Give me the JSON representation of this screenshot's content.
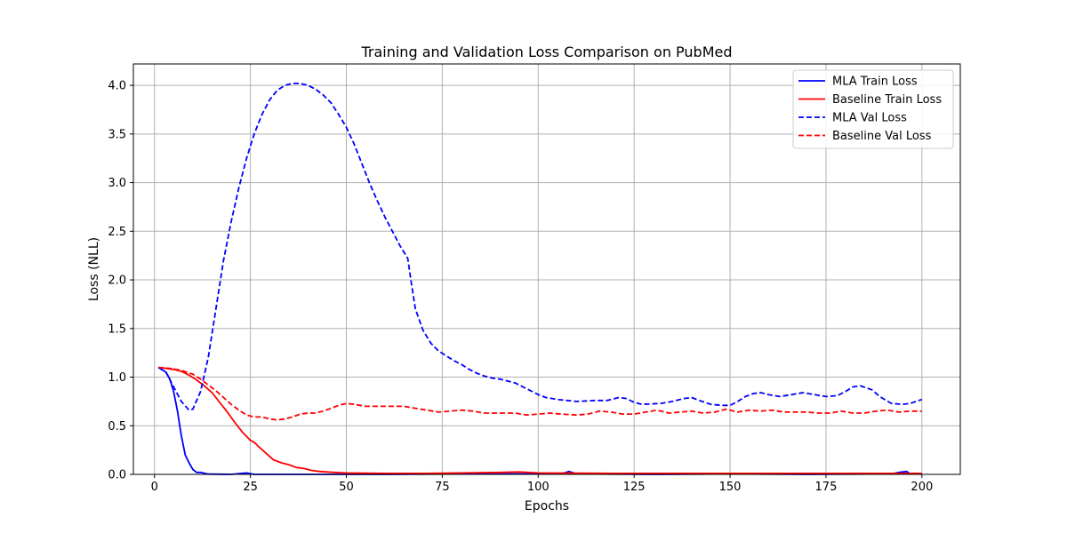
{
  "chart_data": {
    "type": "line",
    "title": "Training and Validation Loss Comparison on PubMed",
    "xlabel": "Epochs",
    "ylabel": "Loss (NLL)",
    "xlim": [
      -5.5,
      210
    ],
    "ylim": [
      0,
      4.22
    ],
    "xticks": [
      0,
      25,
      50,
      75,
      100,
      125,
      150,
      175,
      200
    ],
    "yticks": [
      0.0,
      0.5,
      1.0,
      1.5,
      2.0,
      2.5,
      3.0,
      3.5,
      4.0
    ],
    "ytick_labels": [
      "0.0",
      "0.5",
      "1.0",
      "1.5",
      "2.0",
      "2.5",
      "3.0",
      "3.5",
      "4.0"
    ],
    "grid": true,
    "legend_position": "top-right",
    "series": [
      {
        "name": "MLA Train Loss",
        "color": "#0000ff",
        "style": "solid",
        "points": [
          [
            1,
            1.1
          ],
          [
            3,
            1.05
          ],
          [
            4,
            0.98
          ],
          [
            5,
            0.85
          ],
          [
            6,
            0.65
          ],
          [
            7,
            0.4
          ],
          [
            8,
            0.2
          ],
          [
            9,
            0.12
          ],
          [
            10,
            0.05
          ],
          [
            11,
            0.02
          ],
          [
            12,
            0.02
          ],
          [
            14,
            0.003
          ],
          [
            20,
            0.0
          ],
          [
            24,
            0.015
          ],
          [
            26,
            0.0
          ],
          [
            40,
            0.0
          ],
          [
            60,
            0.0
          ],
          [
            80,
            0.005
          ],
          [
            100,
            0.005
          ],
          [
            106,
            0.005
          ],
          [
            108,
            0.03
          ],
          [
            110,
            0.005
          ],
          [
            130,
            0.0
          ],
          [
            150,
            0.005
          ],
          [
            170,
            0.0
          ],
          [
            192,
            0.005
          ],
          [
            194,
            0.02
          ],
          [
            196,
            0.03
          ],
          [
            197,
            0.005
          ],
          [
            200,
            0.005
          ]
        ]
      },
      {
        "name": "Baseline Train Loss",
        "color": "#ff0000",
        "style": "solid",
        "points": [
          [
            1,
            1.1
          ],
          [
            3,
            1.09
          ],
          [
            5,
            1.08
          ],
          [
            7,
            1.06
          ],
          [
            9,
            1.02
          ],
          [
            11,
            0.97
          ],
          [
            13,
            0.91
          ],
          [
            15,
            0.84
          ],
          [
            17,
            0.74
          ],
          [
            19,
            0.64
          ],
          [
            21,
            0.53
          ],
          [
            23,
            0.43
          ],
          [
            24,
            0.39
          ],
          [
            25,
            0.35
          ],
          [
            26,
            0.33
          ],
          [
            27,
            0.29
          ],
          [
            29,
            0.22
          ],
          [
            31,
            0.15
          ],
          [
            33,
            0.12
          ],
          [
            35,
            0.1
          ],
          [
            37,
            0.07
          ],
          [
            39,
            0.06
          ],
          [
            41,
            0.04
          ],
          [
            43,
            0.03
          ],
          [
            45,
            0.025
          ],
          [
            47,
            0.02
          ],
          [
            50,
            0.015
          ],
          [
            55,
            0.012
          ],
          [
            60,
            0.01
          ],
          [
            70,
            0.01
          ],
          [
            80,
            0.015
          ],
          [
            90,
            0.02
          ],
          [
            95,
            0.025
          ],
          [
            100,
            0.015
          ],
          [
            120,
            0.01
          ],
          [
            140,
            0.01
          ],
          [
            160,
            0.01
          ],
          [
            180,
            0.01
          ],
          [
            200,
            0.01
          ]
        ]
      },
      {
        "name": "MLA Val Loss",
        "color": "#0000ff",
        "style": "dashed",
        "points": [
          [
            1,
            1.1
          ],
          [
            3,
            1.05
          ],
          [
            5,
            0.9
          ],
          [
            7,
            0.75
          ],
          [
            9,
            0.66
          ],
          [
            10,
            0.67
          ],
          [
            12,
            0.85
          ],
          [
            14,
            1.2
          ],
          [
            16,
            1.7
          ],
          [
            18,
            2.2
          ],
          [
            20,
            2.6
          ],
          [
            22,
            2.95
          ],
          [
            24,
            3.25
          ],
          [
            26,
            3.5
          ],
          [
            28,
            3.7
          ],
          [
            30,
            3.85
          ],
          [
            32,
            3.95
          ],
          [
            34,
            4.0
          ],
          [
            36,
            4.02
          ],
          [
            38,
            4.02
          ],
          [
            40,
            4.0
          ],
          [
            42,
            3.96
          ],
          [
            44,
            3.9
          ],
          [
            46,
            3.82
          ],
          [
            48,
            3.7
          ],
          [
            50,
            3.57
          ],
          [
            52,
            3.4
          ],
          [
            54,
            3.2
          ],
          [
            56,
            3.0
          ],
          [
            58,
            2.82
          ],
          [
            60,
            2.65
          ],
          [
            62,
            2.5
          ],
          [
            64,
            2.35
          ],
          [
            66,
            2.22
          ],
          [
            67,
            1.95
          ],
          [
            68,
            1.7
          ],
          [
            70,
            1.48
          ],
          [
            72,
            1.35
          ],
          [
            74,
            1.27
          ],
          [
            76,
            1.22
          ],
          [
            78,
            1.17
          ],
          [
            80,
            1.13
          ],
          [
            82,
            1.08
          ],
          [
            84,
            1.04
          ],
          [
            86,
            1.01
          ],
          [
            88,
            0.99
          ],
          [
            90,
            0.98
          ],
          [
            92,
            0.96
          ],
          [
            94,
            0.94
          ],
          [
            96,
            0.9
          ],
          [
            98,
            0.86
          ],
          [
            100,
            0.82
          ],
          [
            102,
            0.79
          ],
          [
            105,
            0.77
          ],
          [
            110,
            0.75
          ],
          [
            115,
            0.76
          ],
          [
            118,
            0.76
          ],
          [
            121,
            0.79
          ],
          [
            123,
            0.78
          ],
          [
            125,
            0.74
          ],
          [
            127,
            0.72
          ],
          [
            132,
            0.73
          ],
          [
            135,
            0.75
          ],
          [
            138,
            0.78
          ],
          [
            140,
            0.79
          ],
          [
            142,
            0.76
          ],
          [
            145,
            0.72
          ],
          [
            148,
            0.71
          ],
          [
            150,
            0.71
          ],
          [
            152,
            0.75
          ],
          [
            154,
            0.8
          ],
          [
            156,
            0.83
          ],
          [
            158,
            0.84
          ],
          [
            160,
            0.82
          ],
          [
            163,
            0.8
          ],
          [
            166,
            0.82
          ],
          [
            169,
            0.84
          ],
          [
            172,
            0.82
          ],
          [
            175,
            0.8
          ],
          [
            178,
            0.81
          ],
          [
            180,
            0.85
          ],
          [
            182,
            0.9
          ],
          [
            184,
            0.91
          ],
          [
            187,
            0.87
          ],
          [
            189,
            0.8
          ],
          [
            192,
            0.73
          ],
          [
            195,
            0.72
          ],
          [
            197,
            0.73
          ],
          [
            200,
            0.77
          ]
        ]
      },
      {
        "name": "Baseline Val Loss",
        "color": "#ff0000",
        "style": "dashed",
        "points": [
          [
            1,
            1.1
          ],
          [
            4,
            1.09
          ],
          [
            7,
            1.07
          ],
          [
            10,
            1.03
          ],
          [
            12,
            0.98
          ],
          [
            14,
            0.92
          ],
          [
            16,
            0.86
          ],
          [
            18,
            0.79
          ],
          [
            20,
            0.72
          ],
          [
            22,
            0.66
          ],
          [
            24,
            0.61
          ],
          [
            26,
            0.59
          ],
          [
            28,
            0.59
          ],
          [
            30,
            0.57
          ],
          [
            32,
            0.56
          ],
          [
            34,
            0.57
          ],
          [
            36,
            0.59
          ],
          [
            38,
            0.62
          ],
          [
            40,
            0.63
          ],
          [
            42,
            0.63
          ],
          [
            44,
            0.65
          ],
          [
            46,
            0.68
          ],
          [
            48,
            0.71
          ],
          [
            50,
            0.73
          ],
          [
            52,
            0.72
          ],
          [
            55,
            0.7
          ],
          [
            58,
            0.7
          ],
          [
            62,
            0.7
          ],
          [
            65,
            0.7
          ],
          [
            68,
            0.68
          ],
          [
            71,
            0.66
          ],
          [
            74,
            0.64
          ],
          [
            77,
            0.65
          ],
          [
            80,
            0.66
          ],
          [
            83,
            0.65
          ],
          [
            86,
            0.63
          ],
          [
            90,
            0.63
          ],
          [
            94,
            0.63
          ],
          [
            97,
            0.61
          ],
          [
            100,
            0.62
          ],
          [
            103,
            0.63
          ],
          [
            106,
            0.62
          ],
          [
            110,
            0.61
          ],
          [
            113,
            0.62
          ],
          [
            116,
            0.65
          ],
          [
            119,
            0.64
          ],
          [
            122,
            0.62
          ],
          [
            125,
            0.62
          ],
          [
            128,
            0.64
          ],
          [
            131,
            0.66
          ],
          [
            134,
            0.63
          ],
          [
            137,
            0.64
          ],
          [
            140,
            0.65
          ],
          [
            143,
            0.63
          ],
          [
            146,
            0.64
          ],
          [
            149,
            0.67
          ],
          [
            152,
            0.64
          ],
          [
            155,
            0.66
          ],
          [
            158,
            0.65
          ],
          [
            161,
            0.66
          ],
          [
            164,
            0.64
          ],
          [
            167,
            0.64
          ],
          [
            170,
            0.64
          ],
          [
            173,
            0.63
          ],
          [
            176,
            0.63
          ],
          [
            179,
            0.65
          ],
          [
            182,
            0.63
          ],
          [
            185,
            0.63
          ],
          [
            188,
            0.65
          ],
          [
            191,
            0.66
          ],
          [
            194,
            0.64
          ],
          [
            197,
            0.65
          ],
          [
            200,
            0.65
          ]
        ]
      }
    ]
  }
}
